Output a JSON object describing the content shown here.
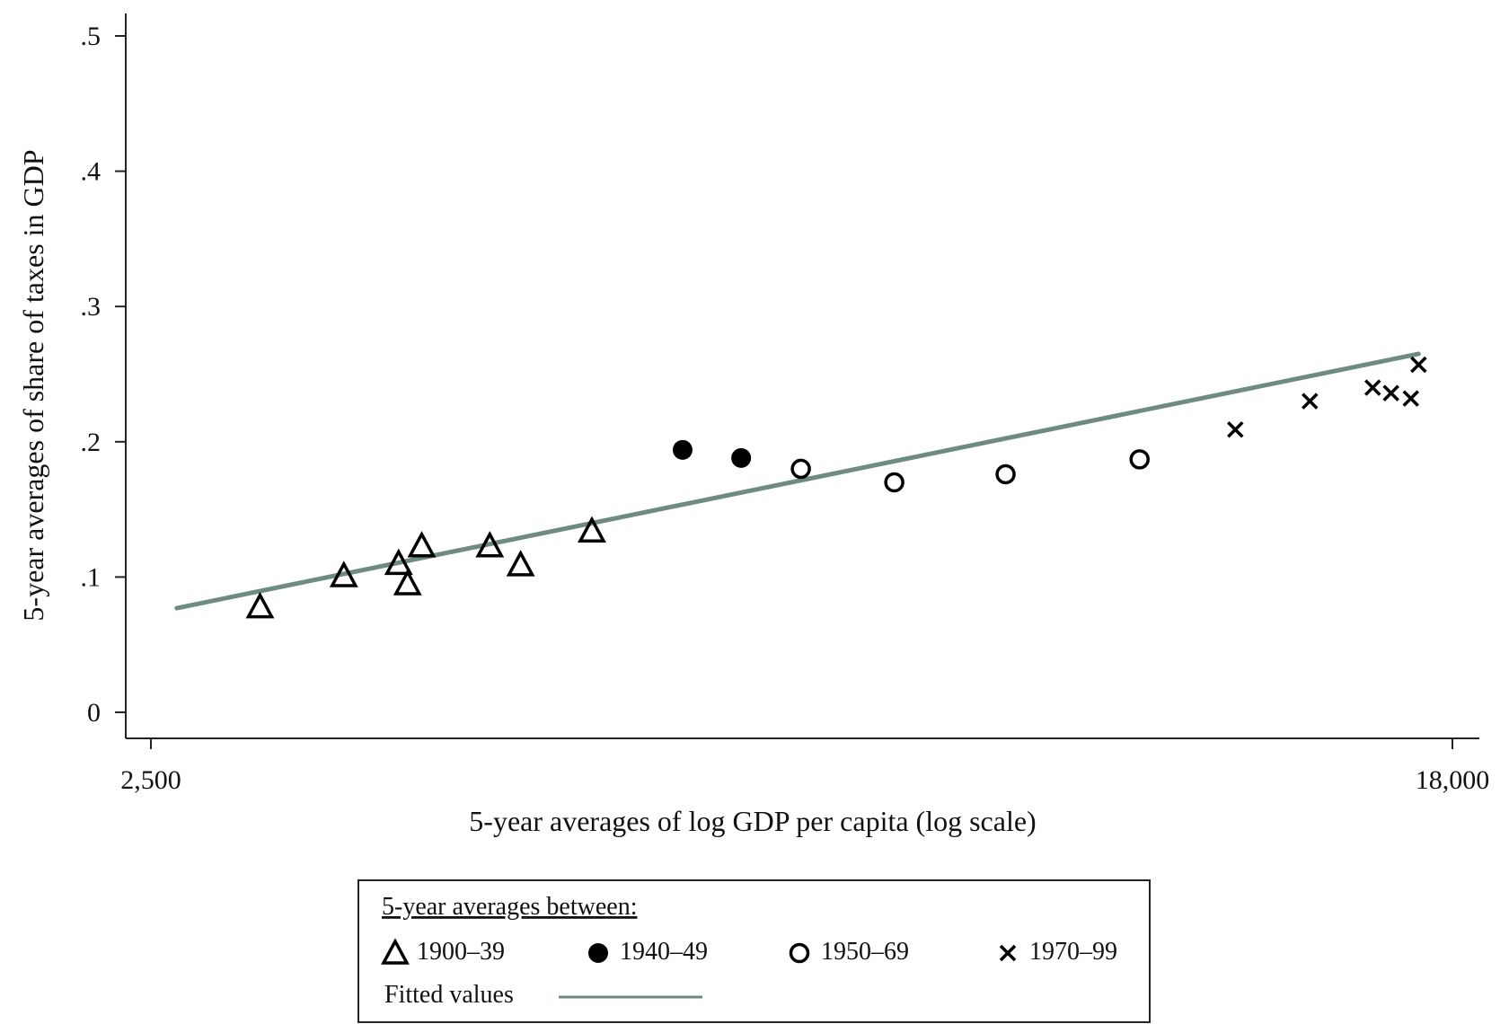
{
  "chart_data": {
    "type": "scatter",
    "title": "",
    "xlabel": "5-year averages of log GDP per capita (log scale)",
    "ylabel": "5-year averages of share of taxes in GDP",
    "x_scale": "log",
    "xlim": [
      2500,
      18000
    ],
    "ylim": [
      0,
      0.5
    ],
    "x_ticks": [
      {
        "value": 2500,
        "label": "2,500"
      },
      {
        "value": 18000,
        "label": "18,000"
      }
    ],
    "y_ticks": [
      {
        "value": 0,
        "label": "0"
      },
      {
        "value": 0.1,
        "label": ".1"
      },
      {
        "value": 0.2,
        "label": ".2"
      },
      {
        "value": 0.3,
        "label": ".3"
      },
      {
        "value": 0.4,
        "label": ".4"
      },
      {
        "value": 0.5,
        "label": ".5"
      }
    ],
    "grid": false,
    "legend": {
      "placement": "bottom",
      "title": "5-year averages between:",
      "fitted_label": "Fitted values"
    },
    "series": [
      {
        "name": "1900–39",
        "marker": "triangle",
        "points": [
          {
            "x": 2950,
            "y": 0.078
          },
          {
            "x": 3350,
            "y": 0.101
          },
          {
            "x": 3640,
            "y": 0.11
          },
          {
            "x": 3690,
            "y": 0.095
          },
          {
            "x": 3770,
            "y": 0.123
          },
          {
            "x": 4180,
            "y": 0.123
          },
          {
            "x": 4380,
            "y": 0.109
          },
          {
            "x": 4880,
            "y": 0.134
          }
        ]
      },
      {
        "name": "1940–49",
        "marker": "filled-circle",
        "points": [
          {
            "x": 5600,
            "y": 0.194
          },
          {
            "x": 6120,
            "y": 0.188
          }
        ]
      },
      {
        "name": "1950–69",
        "marker": "open-circle",
        "points": [
          {
            "x": 6700,
            "y": 0.18
          },
          {
            "x": 7720,
            "y": 0.17
          },
          {
            "x": 9140,
            "y": 0.176
          },
          {
            "x": 11200,
            "y": 0.187
          }
        ]
      },
      {
        "name": "1970–99",
        "marker": "cross",
        "points": [
          {
            "x": 12950,
            "y": 0.209
          },
          {
            "x": 14500,
            "y": 0.23
          },
          {
            "x": 15950,
            "y": 0.24
          },
          {
            "x": 16400,
            "y": 0.236
          },
          {
            "x": 16900,
            "y": 0.232
          },
          {
            "x": 17100,
            "y": 0.257
          }
        ]
      }
    ],
    "fitted_line": {
      "name": "Fitted values",
      "color": "#6e8b80",
      "points": [
        {
          "x": 2600,
          "y": 0.077
        },
        {
          "x": 17100,
          "y": 0.265
        }
      ]
    }
  }
}
